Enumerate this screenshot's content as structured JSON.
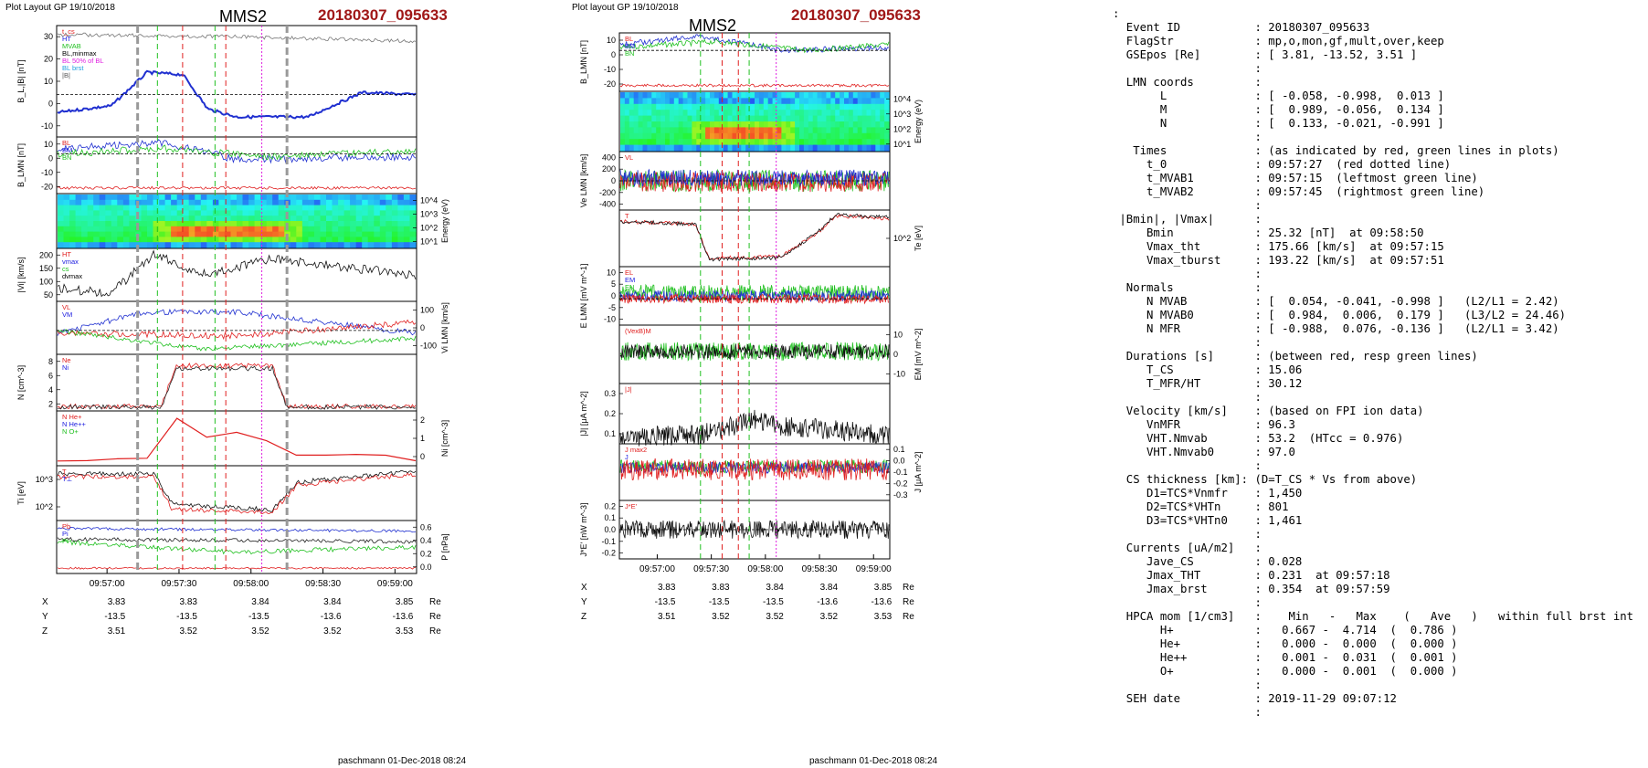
{
  "left_panel": {
    "layout_label": "Plot Layout GP 19/10/2018",
    "spacecraft": "MMS2",
    "event_title": "20180307_095633",
    "footer": "paschmann 01-Dec-2018 08:24",
    "time_ticks": [
      "09:57:00",
      "09:57:30",
      "09:58:00",
      "09:58:30",
      "09:59:00"
    ],
    "position_table": {
      "units": "Re",
      "rows": [
        {
          "axis": "X",
          "values": [
            "3.83",
            "3.83",
            "3.84",
            "3.84",
            "3.85"
          ]
        },
        {
          "axis": "Y",
          "values": [
            "-13.5",
            "-13.5",
            "-13.5",
            "-13.6",
            "-13.6"
          ]
        },
        {
          "axis": "Z",
          "values": [
            "3.51",
            "3.52",
            "3.52",
            "3.52",
            "3.53"
          ]
        }
      ]
    },
    "panels": {
      "bl_bmag": {
        "ylabel": "B_L,|B| [nT]",
        "ticks": [
          "30",
          "20",
          "10",
          "0",
          "-10"
        ],
        "legend": [
          "t_cs",
          "HT",
          "MVAB",
          "BL,minmax",
          "BL 50% of BL",
          "BL brst",
          "|B|"
        ]
      },
      "b_lmn": {
        "ylabel": "B_LMN [nT]",
        "ticks": [
          "10",
          "0",
          "-10",
          "-20"
        ],
        "legend": [
          "BL",
          "BM",
          "BN"
        ]
      },
      "ion_spectrogram": {
        "ylabel": "Energy (eV)",
        "ticks": [
          "10^4",
          "10^3",
          "10^2",
          "10^1"
        ]
      },
      "vi_mag": {
        "ylabel": "|Vi| [km/s]",
        "ticks": [
          "200",
          "150",
          "100",
          "50"
        ],
        "legend": [
          "HT",
          "vmax",
          "cs",
          "dvmax"
        ]
      },
      "vi_lmn": {
        "ylabel": "Vi LMN [km/s]",
        "ticks": [
          "100",
          "0",
          "-100"
        ],
        "legend": [
          "VL",
          "VM"
        ]
      },
      "density": {
        "ylabel": "N [cm^-3]",
        "ticks": [
          "8",
          "6",
          "4",
          "2"
        ],
        "legend": [
          "Ne",
          "Ni"
        ]
      },
      "hpca": {
        "ylabel": "Ni [cm^-3]",
        "scale_label": "3(x10^-2)",
        "ticks": [
          "2",
          "1",
          "0"
        ],
        "legend": [
          "N He+",
          "N He++",
          "N O+"
        ]
      },
      "ti": {
        "ylabel": "Ti [eV]",
        "ticks": [
          "10^3",
          "10^2"
        ],
        "legend": [
          "T",
          "T⊥"
        ]
      },
      "pressure": {
        "ylabel": "P [nPa]",
        "ticks": [
          "0.6",
          "0.4",
          "0.2",
          "0.0"
        ],
        "legend": [
          "Pb",
          "Pi",
          "Pt"
        ]
      }
    }
  },
  "mid_panel": {
    "layout_label": "Plot layout GP 19/10/2018",
    "spacecraft": "MMS2",
    "event_title": "20180307_095633",
    "footer": "paschmann 01-Dec-2018 08:24",
    "time_ticks": [
      "09:57:00",
      "09:57:30",
      "09:58:00",
      "09:58:30",
      "09:59:00"
    ],
    "position_table": {
      "units": "Re",
      "rows": [
        {
          "axis": "X",
          "values": [
            "3.83",
            "3.83",
            "3.84",
            "3.84",
            "3.85"
          ]
        },
        {
          "axis": "Y",
          "values": [
            "-13.5",
            "-13.5",
            "-13.5",
            "-13.6",
            "-13.6"
          ]
        },
        {
          "axis": "Z",
          "values": [
            "3.51",
            "3.52",
            "3.52",
            "3.52",
            "3.53"
          ]
        }
      ]
    },
    "panels": {
      "b_lmn": {
        "ylabel": "B_LMN [nT]",
        "ticks": [
          "10",
          "0",
          "-10",
          "-20"
        ],
        "legend": [
          "BL",
          "BM",
          "BN"
        ]
      },
      "e_spectrogram": {
        "ylabel": "Energy (eV)",
        "ticks": [
          "10^4",
          "10^3",
          "10^2",
          "10^1"
        ]
      },
      "ve_lmn": {
        "ylabel": "Ve LMN [km/s]",
        "ticks": [
          "400",
          "200",
          "0",
          "-200",
          "-400"
        ],
        "legend": [
          "VL"
        ]
      },
      "te": {
        "ylabel": "Te [eV]",
        "ticks": [
          "10^2"
        ],
        "legend": [
          "T"
        ]
      },
      "e_lmn": {
        "ylabel": "E LMN [mV m^-1]",
        "ticks": [
          "10",
          "5",
          "0",
          "-5",
          "-10"
        ],
        "legend": [
          "EL",
          "EM",
          "EN"
        ]
      },
      "em": {
        "ylabel": "EM [mV m^-2]",
        "ticks": [
          "10",
          "0",
          "-10"
        ],
        "legend": [
          "(VexB)M"
        ]
      },
      "j_mag": {
        "ylabel": "|J| [μA m^-2]",
        "ticks": [
          "0.3",
          "0.2",
          "0.1"
        ],
        "legend": [
          "|J|"
        ]
      },
      "j_lmn": {
        "ylabel": "J [μA m^-2]",
        "ticks": [
          "0.1",
          "0.0",
          "-0.1",
          "-0.2",
          "-0.3"
        ],
        "legend": [
          "J max2",
          "J"
        ]
      },
      "jdote": {
        "ylabel": "J*E' [nW m^-3]",
        "ticks": [
          "0.2",
          "0.1",
          "0.0",
          "-0.1",
          "-0.2"
        ],
        "legend": [
          "J*E'"
        ]
      }
    }
  },
  "summary_lines": [
    ":",
    "  Event ID           : 20180307_095633",
    "  FlagStr            : mp,o,mon,gf,mult,over,keep",
    "  GSEpos [Re]        : [ 3.81, -13.52, 3.51 ]",
    "                     :",
    "  LMN coords         :",
    "       L             : [ -0.058, -0.998,  0.013 ]",
    "       M             : [  0.989, -0.056,  0.134 ]",
    "       N             : [  0.133, -0.021, -0.991 ]",
    "                     :",
    "   Times             : (as indicated by red, green lines in plots)",
    "     t_0             : 09:57:27  (red dotted line)",
    "     t_MVAB1         : 09:57:15  (leftmost green line)",
    "     t_MVAB2         : 09:57:45  (rightmost green line)",
    "                     :",
    " |Bmin|, |Vmax|      :",
    "     Bmin            : 25.32 [nT]  at 09:58:50",
    "     Vmax_tht        : 175.66 [km/s]  at 09:57:15",
    "     Vmax_tburst     : 193.22 [km/s]  at 09:57:51",
    "                     :",
    "  Normals            :",
    "     N MVAB          : [  0.054, -0.041, -0.998 ]   (L2/L1 = 2.42)",
    "     N MVAB0         : [  0.984,  0.006,  0.179 ]   (L3/L2 = 24.46)",
    "     N MFR           : [ -0.988,  0.076, -0.136 ]   (L2/L1 = 3.42)",
    "                     :",
    "  Durations [s]      : (between red, resp green lines)",
    "     T_CS            : 15.06",
    "     T_MFR/HT        : 30.12",
    "                     :",
    "  Velocity [km/s]    : (based on FPI ion data)",
    "     VnMFR           : 96.3",
    "     VHT.Nmvab       : 53.2  (HTcc = 0.976)",
    "     VHT.Nmvab0      : 97.0",
    "                     :",
    "  CS thickness [km]: (D=T_CS * Vs from above)",
    "     D1=TCS*Vnmfr    : 1,450",
    "     D2=TCS*VHTn     : 801",
    "     D3=TCS*VHTn0    : 1,461",
    "                     :",
    "  Currents [uA/m2]   :",
    "     Jave_CS         : 0.028",
    "     Jmax_THT        : 0.231  at 09:57:18",
    "     Jmax_brst       : 0.354  at 09:57:59",
    "                     :",
    "  HPCA mom [1/cm3]   :    Min   -   Max    (   Ave   )   within full brst int",
    "       H+            :   0.667 -  4.714  (  0.786 )",
    "       He+           :   0.000 -  0.000  (  0.000 )",
    "       He++          :   0.001 -  0.031  (  0.001 )",
    "       O+            :   0.000 -  0.001  (  0.000 )",
    "                     :",
    "  SEH date           : 2019-11-29 09:07:12",
    "                     :"
  ],
  "colors": {
    "event_title": "#a01818",
    "blue": "#2020e0",
    "red": "#e02020",
    "green": "#20c020",
    "magenta": "#e020e0"
  }
}
